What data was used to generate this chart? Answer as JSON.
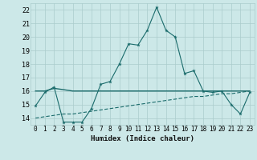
{
  "xlabel": "Humidex (Indice chaleur)",
  "background_color": "#cce8e8",
  "grid_color": "#aacccc",
  "line_color": "#1a6b6b",
  "xlim": [
    -0.5,
    23.5
  ],
  "ylim": [
    13.5,
    22.5
  ],
  "xticks": [
    0,
    1,
    2,
    3,
    4,
    5,
    6,
    7,
    8,
    9,
    10,
    11,
    12,
    13,
    14,
    15,
    16,
    17,
    18,
    19,
    20,
    21,
    22,
    23
  ],
  "yticks": [
    14,
    15,
    16,
    17,
    18,
    19,
    20,
    21,
    22
  ],
  "series1_x": [
    0,
    1,
    2,
    3,
    4,
    5,
    6,
    7,
    8,
    9,
    10,
    11,
    12,
    13,
    14,
    15,
    16,
    17,
    18,
    19,
    20,
    21,
    22,
    23
  ],
  "series1_y": [
    14.9,
    15.9,
    16.3,
    13.7,
    13.7,
    13.7,
    14.7,
    16.5,
    16.7,
    18.0,
    19.5,
    19.4,
    20.5,
    22.2,
    20.5,
    20.0,
    17.3,
    17.5,
    16.0,
    15.9,
    16.0,
    15.0,
    14.3,
    15.9
  ],
  "series2_x": [
    0,
    1,
    2,
    3,
    4,
    5,
    6,
    7,
    8,
    9,
    10,
    11,
    12,
    13,
    14,
    15,
    16,
    17,
    18,
    19,
    20,
    21,
    22,
    23
  ],
  "series2_y": [
    16.0,
    16.0,
    16.2,
    16.1,
    16.0,
    16.0,
    16.0,
    16.0,
    16.0,
    16.0,
    16.0,
    16.0,
    16.0,
    16.0,
    16.0,
    16.0,
    16.0,
    16.0,
    16.0,
    16.0,
    16.0,
    16.0,
    16.0,
    16.0
  ],
  "series3_x": [
    0,
    1,
    2,
    3,
    4,
    5,
    6,
    7,
    8,
    9,
    10,
    11,
    12,
    13,
    14,
    15,
    16,
    17,
    18,
    19,
    20,
    21,
    22,
    23
  ],
  "series3_y": [
    14.0,
    14.1,
    14.2,
    14.3,
    14.3,
    14.4,
    14.5,
    14.6,
    14.7,
    14.8,
    14.9,
    15.0,
    15.1,
    15.2,
    15.3,
    15.4,
    15.5,
    15.6,
    15.6,
    15.7,
    15.8,
    15.8,
    15.9,
    16.0
  ]
}
